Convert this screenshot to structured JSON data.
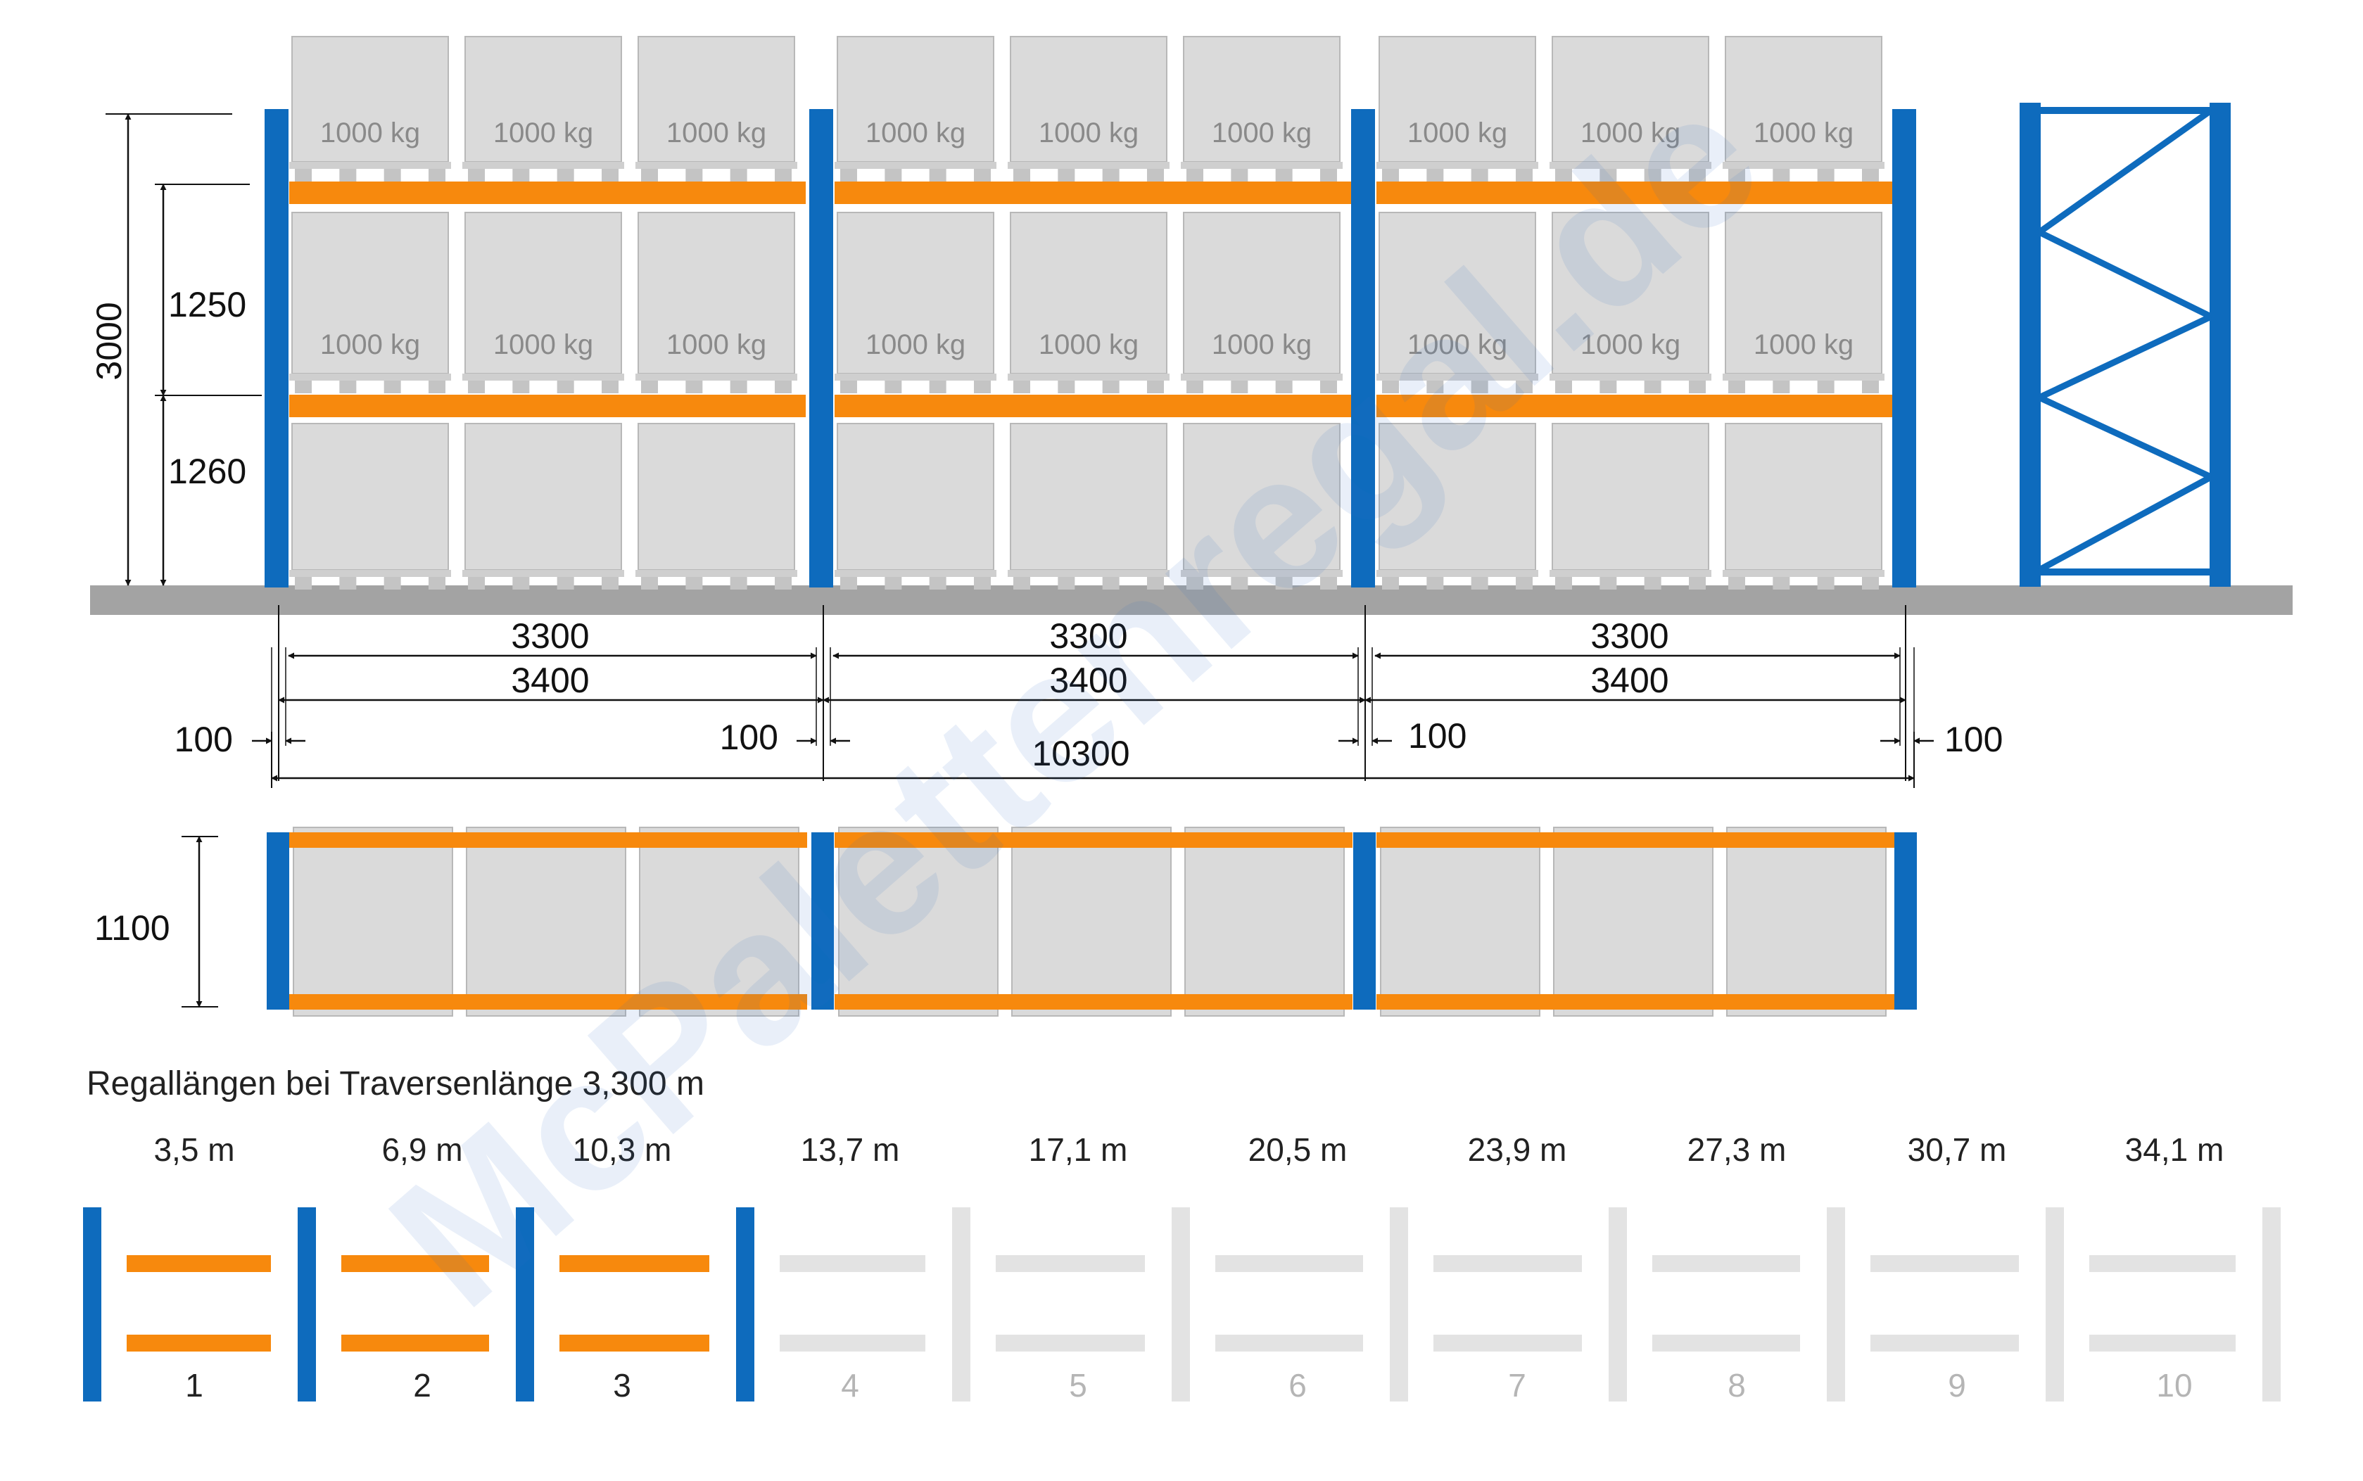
{
  "elevation": {
    "height_total": "3000",
    "level_upper": "1250",
    "level_lower": "1260",
    "bays": [
      {
        "beam_length": "3300",
        "bay_length": "3400"
      },
      {
        "beam_length": "3300",
        "bay_length": "3400"
      },
      {
        "beam_length": "3300",
        "bay_length": "3400"
      }
    ],
    "pallet_load": "1000 kg",
    "upright_labels": [
      "100",
      "100",
      "100",
      "100"
    ],
    "overall_length": "10300"
  },
  "plan": {
    "depth": "1100"
  },
  "lengths_section": {
    "title": "Regallängen bei Traversenlänge 3,300 m",
    "active_count": 3,
    "items": [
      {
        "length": "3,5 m",
        "number": "1"
      },
      {
        "length": "6,9 m",
        "number": "2"
      },
      {
        "length": "10,3 m",
        "number": "3"
      },
      {
        "length": "13,7 m",
        "number": "4"
      },
      {
        "length": "17,1 m",
        "number": "5"
      },
      {
        "length": "20,5 m",
        "number": "6"
      },
      {
        "length": "23,9 m",
        "number": "7"
      },
      {
        "length": "27,3 m",
        "number": "8"
      },
      {
        "length": "30,7 m",
        "number": "9"
      },
      {
        "length": "34,1 m",
        "number": "10"
      }
    ]
  },
  "watermark": "McPalettenregal.de",
  "colors": {
    "upright": "#0e6bbd",
    "beam": "#f7890d",
    "pallet": "#dadada",
    "pallet_edge": "#b8b8b8",
    "floor": "#a3a3a3",
    "inactive": "#e3e3e3"
  }
}
